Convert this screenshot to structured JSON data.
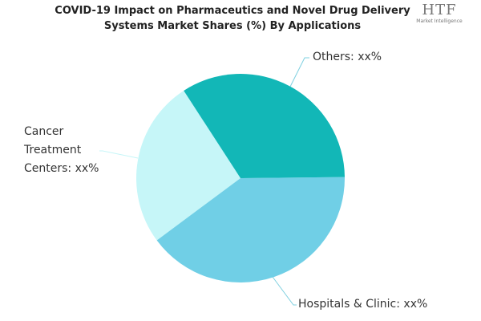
{
  "chart_data": {
    "type": "pie",
    "title": "COVID-19 Impact on Pharmaceutics and Novel Drug Delivery Systems Market Shares (%) By Applications",
    "categories": [
      "Others: xx%",
      "Hospitals & Clinic: xx%",
      "Cancer Treatment Centers: xx%"
    ],
    "values": [
      34,
      40,
      26
    ],
    "colors": [
      "#12b7b7",
      "#70cfe6",
      "#c6f6f8"
    ]
  },
  "logo": {
    "name": "HTF",
    "tagline": "Market Intelligence"
  }
}
